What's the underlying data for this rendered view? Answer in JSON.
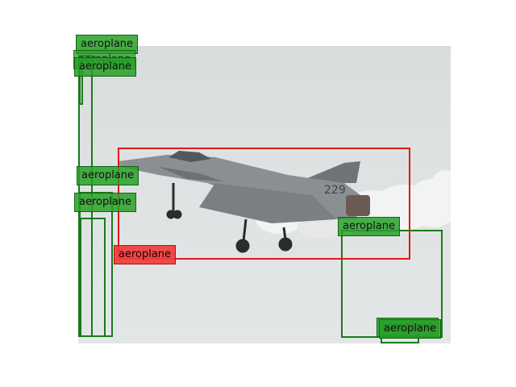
{
  "image": {
    "subject": "fighter-jet-photo",
    "tail_number": "229",
    "colors": {
      "sky": "#dfe2e3",
      "jet_body": "#8b8f92",
      "smoke": "#f2f2f2"
    }
  },
  "detections": [
    {
      "id": "g1",
      "kind": "ground-truth",
      "label": "aeroplane"
    },
    {
      "id": "g2",
      "kind": "ground-truth",
      "label": "aeroplane"
    },
    {
      "id": "g3",
      "kind": "ground-truth",
      "label": "aeroplane"
    },
    {
      "id": "g4",
      "kind": "ground-truth",
      "label": "aeroplane"
    },
    {
      "id": "g5",
      "kind": "ground-truth",
      "label": "aeroplane"
    },
    {
      "id": "g6",
      "kind": "ground-truth",
      "label": "aeroplane"
    },
    {
      "id": "g7",
      "kind": "ground-truth",
      "label": "aeroplane"
    },
    {
      "id": "g8",
      "kind": "ground-truth",
      "label": "aeroplane"
    },
    {
      "id": "p1",
      "kind": "prediction",
      "label": "aeroplane"
    }
  ],
  "colors": {
    "ground_truth": "#1b7a1b",
    "prediction": "#e11919"
  }
}
